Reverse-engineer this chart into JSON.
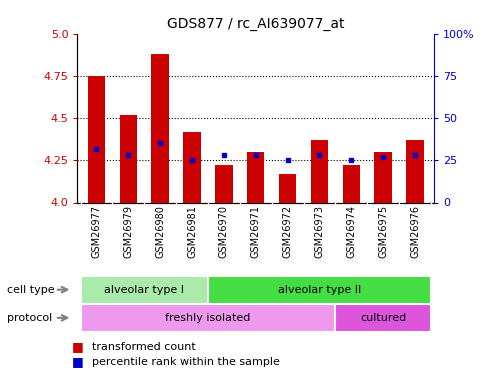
{
  "title": "GDS877 / rc_AI639077_at",
  "samples": [
    "GSM26977",
    "GSM26979",
    "GSM26980",
    "GSM26981",
    "GSM26970",
    "GSM26971",
    "GSM26972",
    "GSM26973",
    "GSM26974",
    "GSM26975",
    "GSM26976"
  ],
  "transformed_count": [
    4.75,
    4.52,
    4.88,
    4.42,
    4.22,
    4.3,
    4.17,
    4.37,
    4.22,
    4.3,
    4.37
  ],
  "percentile_rank": [
    32,
    28,
    35,
    25,
    28,
    28,
    25,
    28,
    25,
    27,
    28
  ],
  "ylim_left": [
    4.0,
    5.0
  ],
  "ylim_right": [
    0,
    100
  ],
  "yticks_left": [
    4.0,
    4.25,
    4.5,
    4.75,
    5.0
  ],
  "yticks_right": [
    0,
    25,
    50,
    75,
    100
  ],
  "bar_color": "#cc0000",
  "dot_color": "#0000cc",
  "cell_type_groups": [
    {
      "label": "alveolar type I",
      "start": 0,
      "end": 4,
      "color": "#aaeaaa"
    },
    {
      "label": "alveolar type II",
      "start": 4,
      "end": 11,
      "color": "#44dd44"
    }
  ],
  "protocol_groups": [
    {
      "label": "freshly isolated",
      "start": 0,
      "end": 8,
      "color": "#ee99ee"
    },
    {
      "label": "cultured",
      "start": 8,
      "end": 11,
      "color": "#dd55dd"
    }
  ],
  "legend_items": [
    {
      "label": "transformed count",
      "color": "#cc0000"
    },
    {
      "label": "percentile rank within the sample",
      "color": "#0000cc"
    }
  ],
  "background_color": "#ffffff",
  "tick_label_color_left": "#cc0000",
  "tick_label_color_right": "#0000cc",
  "xlabel_bg_color": "#cccccc"
}
